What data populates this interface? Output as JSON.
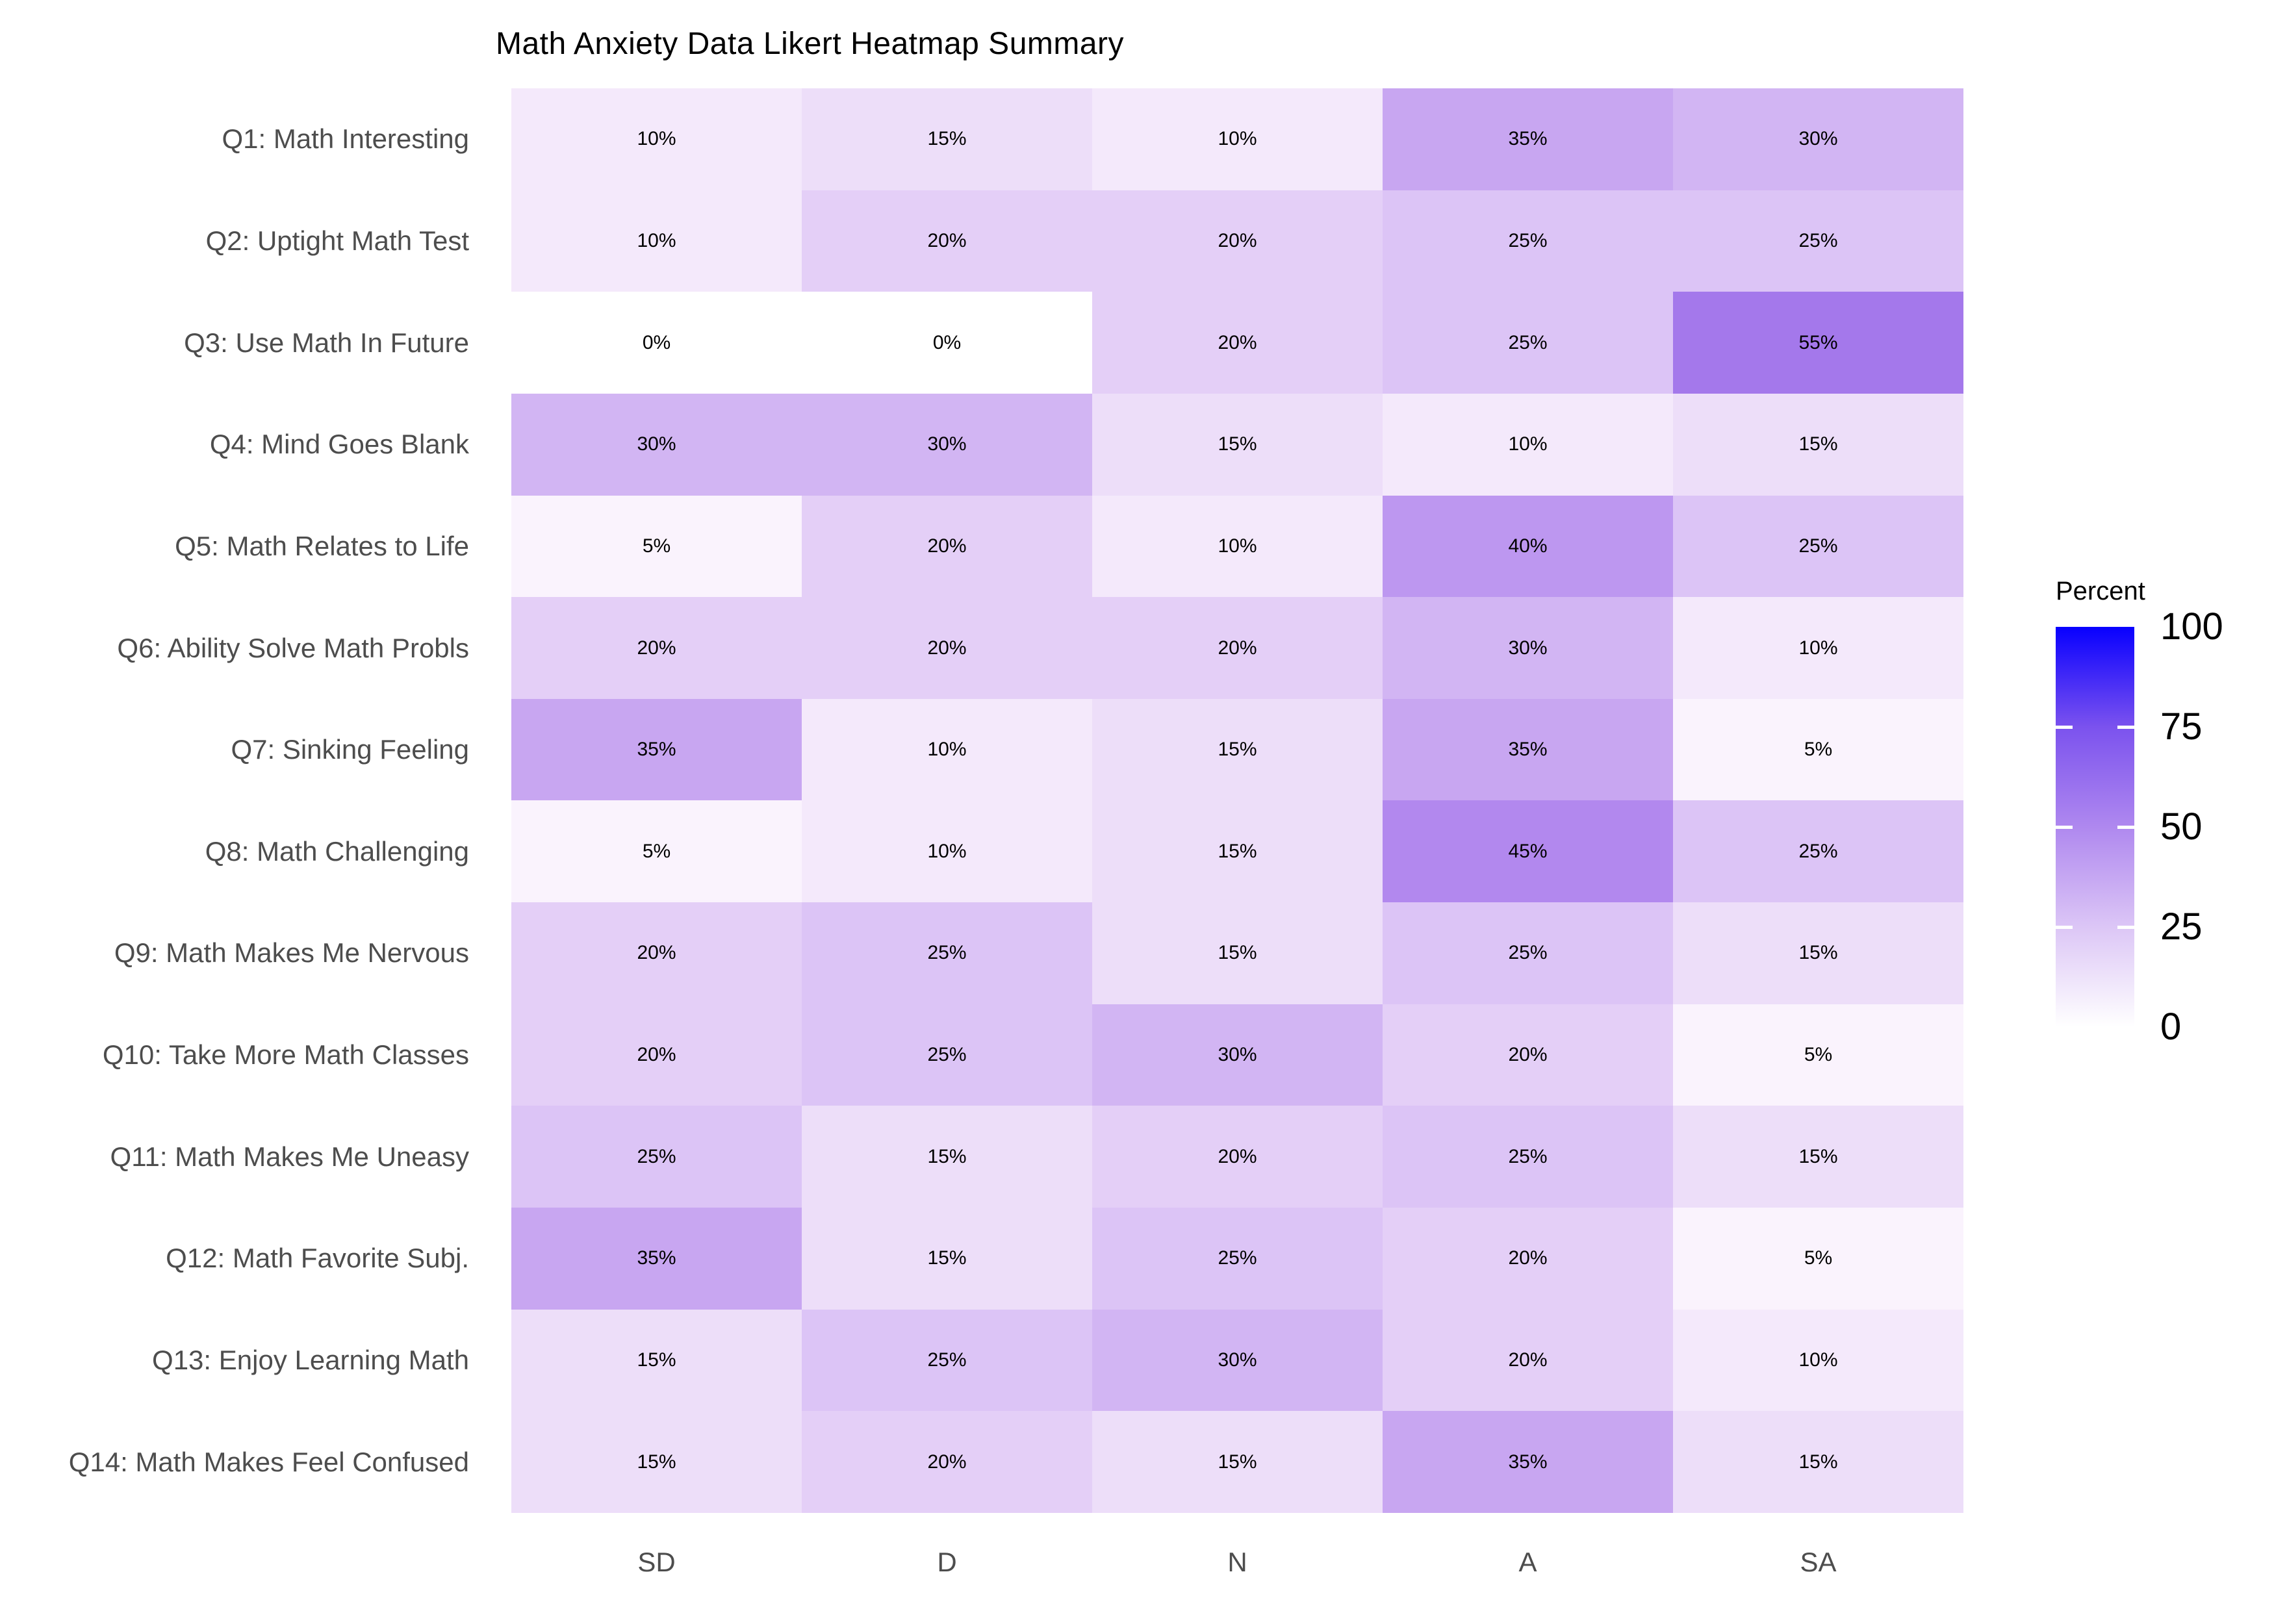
{
  "title": "Math Anxiety Data Likert Heatmap Summary",
  "chart_data": {
    "type": "heatmap",
    "title": "Math Anxiety Data Likert Heatmap Summary",
    "columns": [
      "SD",
      "D",
      "N",
      "A",
      "SA"
    ],
    "rows": [
      {
        "label": "Q1: Math Interesting",
        "values": [
          10,
          15,
          10,
          35,
          30
        ]
      },
      {
        "label": "Q2: Uptight Math Test",
        "values": [
          10,
          20,
          20,
          25,
          25
        ]
      },
      {
        "label": "Q3: Use Math In Future",
        "values": [
          0,
          0,
          20,
          25,
          55
        ]
      },
      {
        "label": "Q4: Mind Goes Blank",
        "values": [
          30,
          30,
          15,
          10,
          15
        ]
      },
      {
        "label": "Q5: Math Relates to Life",
        "values": [
          5,
          20,
          10,
          40,
          25
        ]
      },
      {
        "label": "Q6: Ability Solve Math Probls",
        "values": [
          20,
          20,
          20,
          30,
          10
        ]
      },
      {
        "label": "Q7: Sinking Feeling",
        "values": [
          35,
          10,
          15,
          35,
          5
        ]
      },
      {
        "label": "Q8: Math Challenging",
        "values": [
          5,
          10,
          15,
          45,
          25
        ]
      },
      {
        "label": "Q9: Math Makes Me Nervous",
        "values": [
          20,
          25,
          15,
          25,
          15
        ]
      },
      {
        "label": "Q10: Take More Math Classes",
        "values": [
          20,
          25,
          30,
          20,
          5
        ]
      },
      {
        "label": "Q11: Math Makes Me Uneasy",
        "values": [
          25,
          15,
          20,
          25,
          15
        ]
      },
      {
        "label": "Q12: Math Favorite Subj.",
        "values": [
          35,
          15,
          25,
          20,
          5
        ]
      },
      {
        "label": "Q13: Enjoy Learning Math",
        "values": [
          15,
          25,
          30,
          20,
          10
        ]
      },
      {
        "label": "Q14: Math Makes Feel Confused",
        "values": [
          15,
          20,
          15,
          35,
          15
        ]
      }
    ],
    "value_suffix": "%",
    "value_range": [
      0,
      100
    ],
    "grid": false,
    "legend_position": "right",
    "axis_text_color": "#4d4d4d",
    "cell_text_color": "#000000",
    "color_scale": {
      "0": "#ffffff",
      "5": "#faf3fd",
      "10": "#f4e9fb",
      "15": "#eddef9",
      "20": "#e4cff7",
      "25": "#dcc4f6",
      "30": "#d2b5f3",
      "35": "#c8a6f1",
      "40": "#bd97f0",
      "45": "#b288ee",
      "55": "#a478eb"
    },
    "legend": {
      "title": "Percent",
      "ticks": [
        100,
        75,
        50,
        25,
        0
      ],
      "low_color": "#ffffff",
      "high_color": "#0000ff"
    }
  }
}
